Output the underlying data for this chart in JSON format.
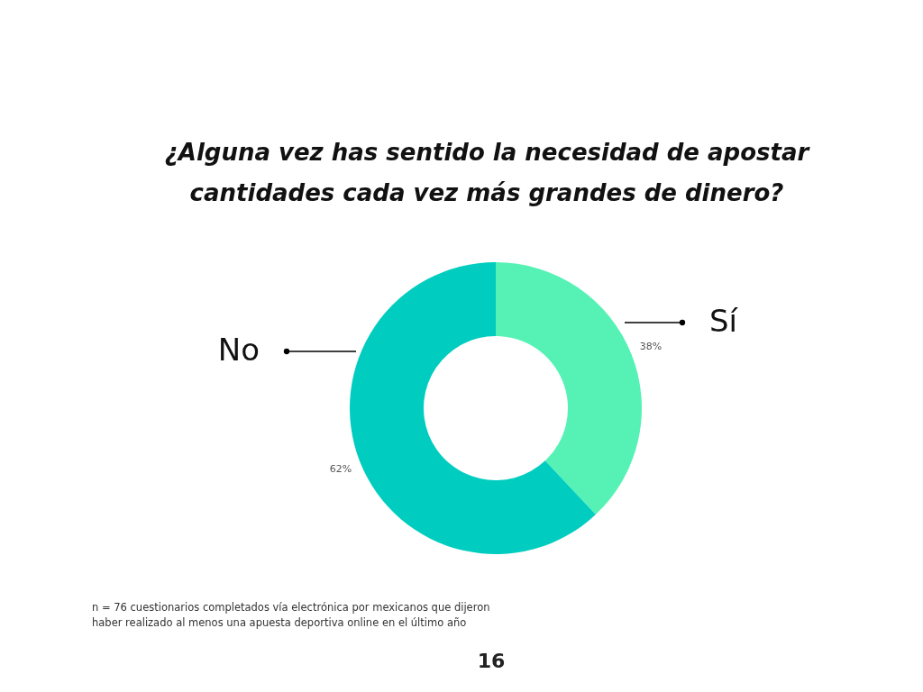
{
  "chart_data": {
    "type": "donut",
    "title": "¿Alguna vez has sentido la necesidad de apostar cantidades cada vez más grandes de dinero?",
    "categories": [
      "Sí",
      "No"
    ],
    "values": [
      38,
      62
    ],
    "colors": [
      "#56f2b5",
      "#00cdbf"
    ],
    "value_labels": [
      "38%",
      "62%"
    ],
    "annotations": [
      "n = 76 cuestionarios completados vía electrónica por mexicanos que dijeron haber realizado al menos una apuesta deportiva online en el último año",
      "16"
    ]
  }
}
